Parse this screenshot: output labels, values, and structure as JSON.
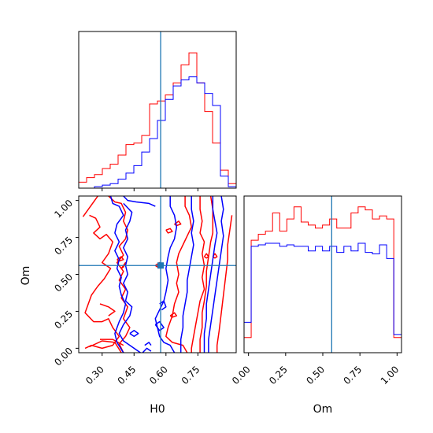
{
  "chart_data": {
    "type": "corner",
    "truths": {
      "H0": 0.575,
      "Om": 0.56
    },
    "colors": {
      "series_a": "#ff0000",
      "series_b": "#0000ff",
      "truth": "#1f77b4"
    },
    "axes": {
      "H0": {
        "label": "H0",
        "lim": [
          0.19,
          0.93
        ],
        "ticks": [
          0.3,
          0.45,
          0.6,
          0.75
        ],
        "tick_labels": [
          "0.30",
          "0.45",
          "0.60",
          "0.75"
        ]
      },
      "Om": {
        "label": "Om",
        "lim": [
          -0.03,
          1.03
        ],
        "ticks": [
          0.0,
          0.25,
          0.5,
          0.75,
          1.0
        ],
        "tick_labels": [
          "0.00",
          "0.25",
          "0.50",
          "0.75",
          "1.00"
        ]
      }
    },
    "hist_H0": {
      "bins": [
        0.19,
        0.227,
        0.264,
        0.301,
        0.338,
        0.375,
        0.412,
        0.449,
        0.486,
        0.523,
        0.56,
        0.597,
        0.634,
        0.671,
        0.708,
        0.745,
        0.782,
        0.819,
        0.856,
        0.893,
        0.93
      ],
      "red": [
        0.04,
        0.07,
        0.09,
        0.13,
        0.16,
        0.22,
        0.29,
        0.3,
        0.35,
        0.56,
        0.58,
        0.62,
        0.7,
        0.82,
        0.9,
        0.7,
        0.51,
        0.3,
        0.12,
        0.03
      ],
      "blue": [
        0.0,
        0.0,
        0.01,
        0.02,
        0.03,
        0.06,
        0.1,
        0.15,
        0.24,
        0.33,
        0.45,
        0.59,
        0.68,
        0.72,
        0.74,
        0.7,
        0.63,
        0.55,
        0.08,
        0.01
      ]
    },
    "hist_Om": {
      "bins": [
        -0.03,
        0.018,
        0.066,
        0.114,
        0.162,
        0.21,
        0.258,
        0.306,
        0.354,
        0.402,
        0.45,
        0.498,
        0.546,
        0.594,
        0.642,
        0.69,
        0.738,
        0.786,
        0.834,
        0.882,
        0.93,
        0.978,
        1.03
      ],
      "red": [
        0.1,
        0.74,
        0.78,
        0.8,
        0.92,
        0.8,
        0.88,
        0.96,
        0.86,
        0.84,
        0.82,
        0.84,
        0.88,
        0.82,
        0.82,
        0.92,
        0.96,
        0.94,
        0.88,
        0.9,
        0.88,
        0.1
      ],
      "blue": [
        0.2,
        0.7,
        0.71,
        0.72,
        0.72,
        0.7,
        0.71,
        0.7,
        0.7,
        0.67,
        0.7,
        0.67,
        0.7,
        0.66,
        0.7,
        0.67,
        0.72,
        0.66,
        0.65,
        0.71,
        0.62,
        0.12
      ]
    },
    "contours": {
      "red": [
        [
          [
            0.21,
            0.89
          ],
          [
            0.23,
            0.93
          ],
          [
            0.25,
            0.97
          ],
          [
            0.28,
            1.03
          ]
        ],
        [
          [
            0.24,
            0.9
          ],
          [
            0.27,
            0.88
          ],
          [
            0.29,
            0.82
          ],
          [
            0.26,
            0.78
          ],
          [
            0.29,
            0.74
          ],
          [
            0.32,
            0.77
          ],
          [
            0.35,
            0.72
          ],
          [
            0.33,
            0.64
          ],
          [
            0.3,
            0.58
          ],
          [
            0.34,
            0.54
          ],
          [
            0.31,
            0.47
          ],
          [
            0.28,
            0.42
          ],
          [
            0.25,
            0.36
          ],
          [
            0.22,
            0.24
          ],
          [
            0.26,
            0.18
          ],
          [
            0.3,
            0.18
          ],
          [
            0.33,
            0.2
          ],
          [
            0.35,
            0.14
          ],
          [
            0.38,
            0.08
          ],
          [
            0.35,
            0.02
          ],
          [
            0.3,
            0.0
          ],
          [
            0.25,
            0.02
          ],
          [
            0.22,
            0.0
          ]
        ],
        [
          [
            0.33,
            1.03
          ],
          [
            0.36,
            0.99
          ],
          [
            0.39,
            0.98
          ],
          [
            0.41,
            0.92
          ],
          [
            0.4,
            0.86
          ],
          [
            0.42,
            0.8
          ],
          [
            0.41,
            0.74
          ],
          [
            0.38,
            0.69
          ],
          [
            0.4,
            0.63
          ],
          [
            0.37,
            0.58
          ],
          [
            0.4,
            0.52
          ],
          [
            0.38,
            0.46
          ],
          [
            0.41,
            0.4
          ],
          [
            0.39,
            0.34
          ],
          [
            0.42,
            0.28
          ],
          [
            0.4,
            0.2
          ],
          [
            0.43,
            0.14
          ],
          [
            0.41,
            0.08
          ],
          [
            0.38,
            0.03
          ],
          [
            0.4,
            -0.03
          ]
        ],
        [
          [
            0.69,
            1.03
          ],
          [
            0.69,
            0.96
          ],
          [
            0.71,
            0.9
          ],
          [
            0.72,
            0.82
          ],
          [
            0.7,
            0.76
          ],
          [
            0.68,
            0.7
          ],
          [
            0.66,
            0.64
          ],
          [
            0.65,
            0.58
          ],
          [
            0.66,
            0.5
          ],
          [
            0.65,
            0.44
          ],
          [
            0.66,
            0.38
          ],
          [
            0.64,
            0.3
          ],
          [
            0.63,
            0.22
          ],
          [
            0.61,
            0.14
          ],
          [
            0.6,
            0.08
          ],
          [
            0.63,
            0.04
          ],
          [
            0.68,
            0.02
          ],
          [
            0.7,
            -0.03
          ]
        ],
        [
          [
            0.76,
            1.03
          ],
          [
            0.76,
            0.94
          ],
          [
            0.77,
            0.86
          ],
          [
            0.76,
            0.78
          ],
          [
            0.78,
            0.72
          ],
          [
            0.77,
            0.64
          ],
          [
            0.78,
            0.56
          ],
          [
            0.77,
            0.48
          ],
          [
            0.78,
            0.4
          ],
          [
            0.76,
            0.32
          ],
          [
            0.75,
            0.24
          ],
          [
            0.74,
            0.16
          ],
          [
            0.73,
            0.08
          ],
          [
            0.72,
            0.0
          ],
          [
            0.72,
            -0.03
          ]
        ],
        [
          [
            0.81,
            1.03
          ],
          [
            0.82,
            0.94
          ],
          [
            0.82,
            0.86
          ],
          [
            0.82,
            0.78
          ],
          [
            0.81,
            0.72
          ],
          [
            0.8,
            0.62
          ],
          [
            0.79,
            0.52
          ],
          [
            0.79,
            0.42
          ],
          [
            0.78,
            0.32
          ],
          [
            0.77,
            0.24
          ],
          [
            0.77,
            0.14
          ],
          [
            0.76,
            0.06
          ],
          [
            0.76,
            -0.03
          ]
        ],
        [
          [
            0.91,
            0.9
          ],
          [
            0.9,
            0.8
          ],
          [
            0.89,
            0.7
          ],
          [
            0.89,
            0.6
          ],
          [
            0.88,
            0.48
          ],
          [
            0.87,
            0.36
          ],
          [
            0.86,
            0.24
          ],
          [
            0.85,
            0.12
          ],
          [
            0.84,
            0.02
          ],
          [
            0.84,
            -0.03
          ]
        ],
        [
          [
            0.24,
            0.01
          ],
          [
            0.3,
            0.05
          ],
          [
            0.36,
            0.04
          ],
          [
            0.39,
            -0.03
          ]
        ],
        [
          [
            0.29,
            0.06
          ],
          [
            0.35,
            0.06
          ],
          [
            0.4,
            0.02
          ]
        ],
        [
          [
            0.29,
            0.3
          ],
          [
            0.33,
            0.28
          ],
          [
            0.36,
            0.25
          ],
          [
            0.33,
            0.22
          ]
        ],
        [
          [
            0.39,
            0.54
          ],
          [
            0.4,
            0.56
          ],
          [
            0.41,
            0.58
          ],
          [
            0.4,
            0.55
          ],
          [
            0.39,
            0.54
          ]
        ],
        [
          [
            0.37,
            0.6
          ],
          [
            0.39,
            0.62
          ],
          [
            0.4,
            0.6
          ],
          [
            0.38,
            0.59
          ],
          [
            0.37,
            0.6
          ]
        ],
        [
          [
            0.55,
            0.56
          ],
          [
            0.57,
            0.58
          ],
          [
            0.56,
            0.55
          ],
          [
            0.55,
            0.56
          ]
        ],
        [
          [
            0.64,
            0.84
          ],
          [
            0.66,
            0.86
          ],
          [
            0.67,
            0.84
          ],
          [
            0.65,
            0.83
          ],
          [
            0.64,
            0.84
          ]
        ],
        [
          [
            0.6,
            0.8
          ],
          [
            0.62,
            0.81
          ],
          [
            0.63,
            0.79
          ],
          [
            0.61,
            0.78
          ],
          [
            0.6,
            0.8
          ]
        ],
        [
          [
            0.78,
            0.62
          ],
          [
            0.79,
            0.64
          ],
          [
            0.8,
            0.62
          ],
          [
            0.79,
            0.61
          ],
          [
            0.78,
            0.62
          ]
        ],
        [
          [
            0.82,
            0.62
          ],
          [
            0.83,
            0.64
          ],
          [
            0.84,
            0.62
          ],
          [
            0.83,
            0.61
          ],
          [
            0.82,
            0.62
          ]
        ],
        [
          [
            0.62,
            0.22
          ],
          [
            0.64,
            0.24
          ],
          [
            0.65,
            0.22
          ],
          [
            0.63,
            0.21
          ],
          [
            0.62,
            0.22
          ]
        ]
      ],
      "blue": [
        [
          [
            0.4,
            1.03
          ],
          [
            0.42,
            1.0
          ],
          [
            0.46,
            0.99
          ],
          [
            0.52,
            0.98
          ],
          [
            0.55,
            0.96
          ]
        ],
        [
          [
            0.4,
            0.98
          ],
          [
            0.42,
            0.95
          ],
          [
            0.44,
            0.92
          ],
          [
            0.43,
            0.86
          ],
          [
            0.41,
            0.8
          ],
          [
            0.42,
            0.74
          ],
          [
            0.4,
            0.68
          ],
          [
            0.42,
            0.62
          ],
          [
            0.41,
            0.56
          ],
          [
            0.42,
            0.5
          ],
          [
            0.4,
            0.44
          ],
          [
            0.42,
            0.38
          ],
          [
            0.41,
            0.32
          ],
          [
            0.44,
            0.28
          ],
          [
            0.43,
            0.22
          ],
          [
            0.4,
            0.16
          ],
          [
            0.38,
            0.1
          ],
          [
            0.4,
            0.05
          ],
          [
            0.45,
            0.0
          ],
          [
            0.48,
            -0.03
          ]
        ],
        [
          [
            0.34,
            1.03
          ],
          [
            0.35,
            0.98
          ],
          [
            0.38,
            0.96
          ],
          [
            0.4,
            0.9
          ],
          [
            0.37,
            0.84
          ],
          [
            0.36,
            0.78
          ],
          [
            0.38,
            0.72
          ],
          [
            0.36,
            0.66
          ],
          [
            0.38,
            0.6
          ],
          [
            0.37,
            0.54
          ],
          [
            0.39,
            0.48
          ],
          [
            0.38,
            0.42
          ],
          [
            0.39,
            0.36
          ],
          [
            0.41,
            0.3
          ],
          [
            0.4,
            0.24
          ],
          [
            0.38,
            0.18
          ],
          [
            0.36,
            0.1
          ],
          [
            0.37,
            0.04
          ],
          [
            0.4,
            -0.03
          ]
        ],
        [
          [
            0.62,
            1.03
          ],
          [
            0.62,
            0.96
          ],
          [
            0.64,
            0.9
          ],
          [
            0.65,
            0.82
          ],
          [
            0.64,
            0.74
          ],
          [
            0.62,
            0.68
          ],
          [
            0.61,
            0.62
          ],
          [
            0.6,
            0.54
          ],
          [
            0.61,
            0.46
          ],
          [
            0.6,
            0.38
          ],
          [
            0.59,
            0.32
          ],
          [
            0.57,
            0.26
          ],
          [
            0.55,
            0.2
          ],
          [
            0.56,
            0.14
          ],
          [
            0.57,
            0.08
          ],
          [
            0.59,
            0.04
          ],
          [
            0.62,
            0.02
          ],
          [
            0.64,
            -0.03
          ]
        ],
        [
          [
            0.72,
            1.03
          ],
          [
            0.72,
            0.94
          ],
          [
            0.73,
            0.86
          ],
          [
            0.72,
            0.78
          ],
          [
            0.73,
            0.7
          ],
          [
            0.72,
            0.62
          ],
          [
            0.71,
            0.54
          ],
          [
            0.7,
            0.46
          ],
          [
            0.7,
            0.38
          ],
          [
            0.69,
            0.3
          ],
          [
            0.68,
            0.22
          ],
          [
            0.68,
            0.14
          ],
          [
            0.67,
            0.06
          ],
          [
            0.67,
            -0.03
          ]
        ],
        [
          [
            0.82,
            1.03
          ],
          [
            0.82,
            0.94
          ],
          [
            0.83,
            0.86
          ],
          [
            0.84,
            0.78
          ],
          [
            0.83,
            0.7
          ],
          [
            0.82,
            0.6
          ],
          [
            0.81,
            0.5
          ],
          [
            0.8,
            0.4
          ],
          [
            0.79,
            0.3
          ],
          [
            0.79,
            0.2
          ],
          [
            0.78,
            0.1
          ],
          [
            0.78,
            0.02
          ],
          [
            0.78,
            -0.03
          ]
        ],
        [
          [
            0.86,
            1.03
          ],
          [
            0.87,
            0.94
          ],
          [
            0.86,
            0.86
          ],
          [
            0.87,
            0.76
          ],
          [
            0.86,
            0.66
          ],
          [
            0.85,
            0.56
          ],
          [
            0.84,
            0.46
          ],
          [
            0.83,
            0.36
          ],
          [
            0.82,
            0.26
          ],
          [
            0.81,
            0.16
          ],
          [
            0.8,
            0.06
          ],
          [
            0.8,
            -0.03
          ]
        ],
        [
          [
            0.57,
            0.3
          ],
          [
            0.59,
            0.32
          ],
          [
            0.6,
            0.28
          ],
          [
            0.58,
            0.26
          ]
        ],
        [
          [
            0.55,
            0.16
          ],
          [
            0.57,
            0.18
          ],
          [
            0.59,
            0.14
          ],
          [
            0.57,
            0.12
          ],
          [
            0.55,
            0.16
          ]
        ],
        [
          [
            0.49,
            -0.03
          ],
          [
            0.51,
            0.0
          ],
          [
            0.53,
            -0.02
          ]
        ],
        [
          [
            0.43,
            0.1
          ],
          [
            0.45,
            0.12
          ],
          [
            0.47,
            0.1
          ],
          [
            0.45,
            0.08
          ],
          [
            0.43,
            0.1
          ]
        ],
        [
          [
            0.5,
            0.02
          ],
          [
            0.52,
            0.04
          ],
          [
            0.53,
            0.02
          ]
        ]
      ]
    }
  }
}
